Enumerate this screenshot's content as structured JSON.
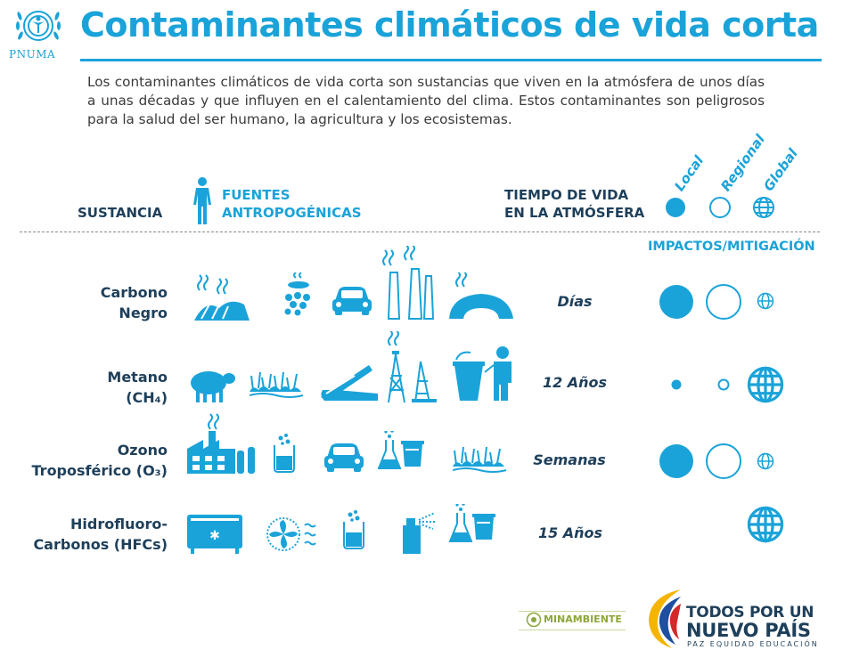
{
  "header": {
    "title": "Contaminantes climáticos de vida corta",
    "logo_text": "PNUMA"
  },
  "intro": "Los contaminantes climáticos de vida corta son sustancias que viven en la atmósfera de unos días a unas décadas y que influyen en el calentamiento del clima. Estos contaminantes son peligrosos para la salud del ser humano, la agricultura y los ecosistemas.",
  "columns": {
    "sustancia": "SUSTANCIA",
    "fuentes_l1": "FUENTES",
    "fuentes_l2": "ANTROPOGÉNICAS",
    "tiempo_l1": "TIEMPO DE VIDA",
    "tiempo_l2": "EN LA ATMÓSFERA",
    "impactos": "IMPACTOS/MITIGACIÓN",
    "scales": [
      "Local",
      "Regional",
      "Global"
    ]
  },
  "rows": [
    {
      "name_l1": "Carbono",
      "name_l2": "Negro",
      "lifetime": "Días",
      "icons": [
        "field-burning-icon",
        "cookstove-icon",
        "car-icon",
        "factory-chimneys-icon",
        "kiln-icon"
      ],
      "impacts": {
        "local": "large",
        "regional": "large",
        "global": "small"
      }
    },
    {
      "name_l1": "Metano",
      "name_l2": "(CH₄)",
      "lifetime": "12 Años",
      "icons": [
        "sheep-icon",
        "rice-paddy-icon",
        "open-bag-icon",
        "oil-rig-icon",
        "waste-bin-icon"
      ],
      "impacts": {
        "local": "tiny",
        "regional": "tiny",
        "global": "large"
      }
    },
    {
      "name_l1": "Ozono",
      "name_l2": "Troposférico (O₃)",
      "lifetime": "Semanas",
      "icons": [
        "industrial-plant-icon",
        "beaker-icon",
        "car-icon",
        "flask-icon",
        "paddy-field-icon"
      ],
      "impacts": {
        "local": "large",
        "regional": "large",
        "global": "small"
      }
    },
    {
      "name_l1": "Hidrofluoro-",
      "name_l2": "Carbonos (HFCs)",
      "lifetime": "15 Años",
      "icons": [
        "refrigerator-icon",
        "air-conditioner-fan-icon",
        "beaker-icon",
        "spray-can-icon",
        "flask-icon"
      ],
      "impacts": {
        "local": "none",
        "regional": "none",
        "global": "large"
      }
    }
  ],
  "footer": {
    "minambiente": "MINAMBIENTE",
    "todos_l1": "TODOS POR UN",
    "todos_l2": "NUEVO PAÍS",
    "todos_l3": "PAZ EQUIDAD EDUCACIÓN"
  },
  "colors": {
    "accent": "#1aa3d9",
    "dark_text": "#1e3f5a"
  }
}
